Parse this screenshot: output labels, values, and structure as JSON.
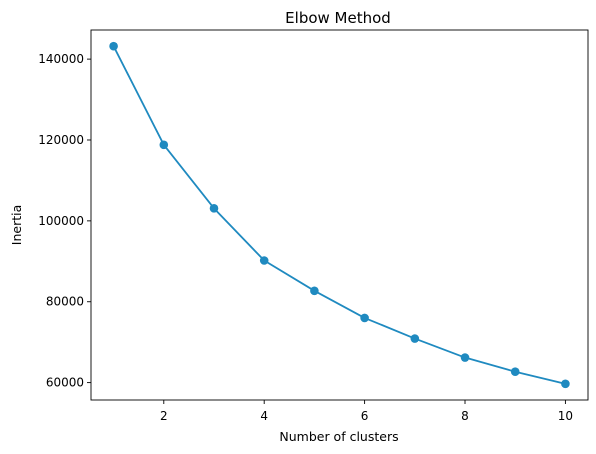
{
  "chart_data": {
    "type": "line",
    "title": "Elbow Method",
    "xlabel": "Number of clusters",
    "ylabel": "Inertia",
    "xlim": [
      0.55,
      10.45
    ],
    "ylim": [
      55700,
      147200
    ],
    "grid": false,
    "legend": null,
    "xticks": [
      2,
      4,
      6,
      8,
      10
    ],
    "yticks": [
      60000,
      80000,
      100000,
      120000,
      140000
    ],
    "series": [
      {
        "marker": "circle",
        "color": "#1f8ac0",
        "x": [
          1,
          2,
          3,
          4,
          5,
          6,
          7,
          8,
          9,
          10
        ],
        "y": [
          143200,
          118800,
          103100,
          90200,
          82700,
          76000,
          70900,
          66200,
          62700,
          59700
        ]
      }
    ]
  }
}
